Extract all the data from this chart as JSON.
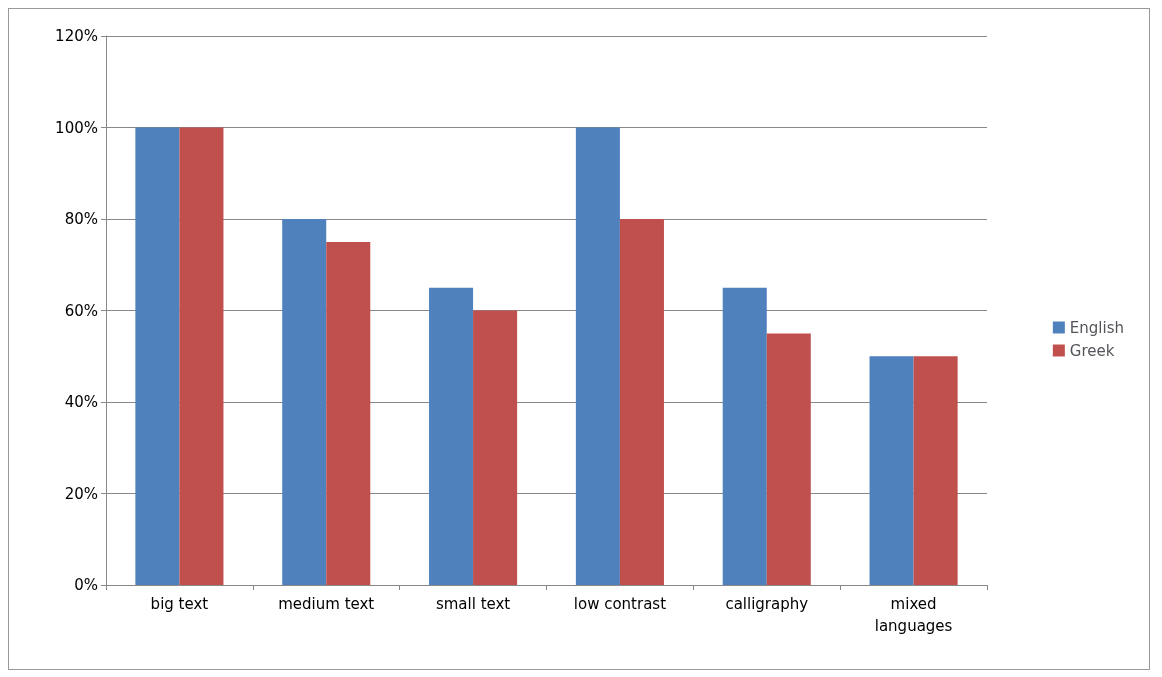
{
  "chart_data": {
    "type": "bar",
    "categories": [
      "big text",
      "medium text",
      "small text",
      "low contrast",
      "calligraphy",
      "mixed\nlanguages"
    ],
    "series": [
      {
        "name": "English",
        "color": "#4f81bd",
        "values": [
          100,
          80,
          65,
          100,
          65,
          50
        ]
      },
      {
        "name": "Greek",
        "color": "#c0504d",
        "values": [
          100,
          75,
          60,
          80,
          55,
          50
        ]
      }
    ],
    "ylim": [
      0,
      120
    ],
    "yticks": [
      {
        "value": 0,
        "label": "0%"
      },
      {
        "value": 20,
        "label": "20%"
      },
      {
        "value": 40,
        "label": "40%"
      },
      {
        "value": 60,
        "label": "60%"
      },
      {
        "value": 80,
        "label": "80%"
      },
      {
        "value": 100,
        "label": "100%"
      },
      {
        "value": 120,
        "label": "120%"
      }
    ],
    "grid": "y",
    "legend": "right"
  }
}
